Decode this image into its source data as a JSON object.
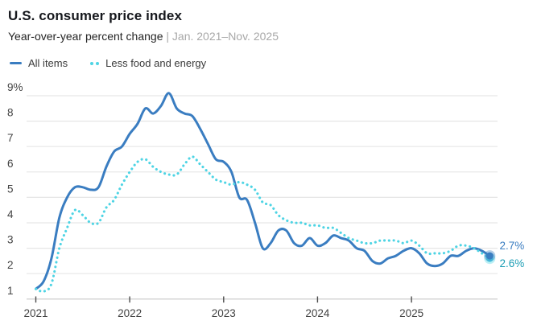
{
  "header": {
    "title": "U.S. consumer price index",
    "subtitle": "Year-over-year percent change",
    "period": "| Jan. 2021–Nov. 2025"
  },
  "legend": {
    "items": [
      {
        "label": "All items"
      },
      {
        "label": "Less food and energy"
      }
    ]
  },
  "colors": {
    "accent_blue": "#3a7dc1",
    "accent_cyan": "#4ed4e4",
    "teal_label": "#1d9eb5",
    "gridline": "#e6e6e6",
    "baseline": "#c9c9c9",
    "axis_text": "#434343",
    "tick": "#4c4c4c"
  },
  "chart_data": {
    "type": "line",
    "title": "U.S. consumer price index",
    "subtitle": "Year-over-year percent change | Jan. 2021–Nov. 2025",
    "unit": "%",
    "frequency": "monthly",
    "x_start": "Jan. 2021",
    "x_end": "Nov. 2025",
    "ylim": [
      1,
      9
    ],
    "grid": true,
    "legend_position": "top-left",
    "y_ticks": [
      {
        "value": 9,
        "label": "9%"
      },
      {
        "value": 8,
        "label": "8"
      },
      {
        "value": 7,
        "label": "7"
      },
      {
        "value": 6,
        "label": "6"
      },
      {
        "value": 5,
        "label": "5"
      },
      {
        "value": 4,
        "label": "4"
      },
      {
        "value": 3,
        "label": "3"
      },
      {
        "value": 2,
        "label": "2"
      },
      {
        "value": 1,
        "label": "1"
      }
    ],
    "x_ticks": [
      {
        "label": "2021",
        "month_index": 0
      },
      {
        "label": "2022",
        "month_index": 12
      },
      {
        "label": "2023",
        "month_index": 24
      },
      {
        "label": "2024",
        "month_index": 36
      },
      {
        "label": "2025",
        "month_index": 48
      }
    ],
    "series": [
      {
        "name": "All items",
        "color": "#3a7dc1",
        "line_style": "solid",
        "end_label": "2.7%",
        "end_label_color": "#3a7dc1",
        "end_dot": true,
        "values": [
          1.4,
          1.7,
          2.6,
          4.2,
          5.0,
          5.4,
          5.4,
          5.3,
          5.4,
          6.2,
          6.8,
          7.0,
          7.5,
          7.9,
          8.5,
          8.3,
          8.6,
          9.1,
          8.5,
          8.3,
          8.2,
          7.7,
          7.1,
          6.5,
          6.4,
          6.0,
          5.0,
          4.9,
          4.0,
          3.0,
          3.2,
          3.7,
          3.7,
          3.2,
          3.1,
          3.4,
          3.1,
          3.2,
          3.5,
          3.4,
          3.3,
          3.0,
          2.9,
          2.5,
          2.4,
          2.6,
          2.7,
          2.9,
          3.0,
          2.8,
          2.4,
          2.3,
          2.4,
          2.7,
          2.7,
          2.9,
          3.0,
          2.9,
          2.7
        ]
      },
      {
        "name": "Less food and energy",
        "color": "#4ed4e4",
        "line_style": "dotted",
        "end_label": "2.6%",
        "end_label_color": "#1d9eb5",
        "end_dot": true,
        "values": [
          1.4,
          1.3,
          1.6,
          3.0,
          3.8,
          4.5,
          4.3,
          4.0,
          4.0,
          4.6,
          4.9,
          5.5,
          6.0,
          6.4,
          6.5,
          6.2,
          6.0,
          5.9,
          5.9,
          6.3,
          6.6,
          6.3,
          6.0,
          5.7,
          5.6,
          5.5,
          5.6,
          5.5,
          5.3,
          4.8,
          4.7,
          4.3,
          4.1,
          4.0,
          4.0,
          3.9,
          3.9,
          3.8,
          3.8,
          3.6,
          3.4,
          3.3,
          3.2,
          3.2,
          3.3,
          3.3,
          3.3,
          3.2,
          3.3,
          3.1,
          2.8,
          2.8,
          2.8,
          2.9,
          3.1,
          3.1,
          3.0,
          2.8,
          2.6
        ]
      }
    ]
  }
}
